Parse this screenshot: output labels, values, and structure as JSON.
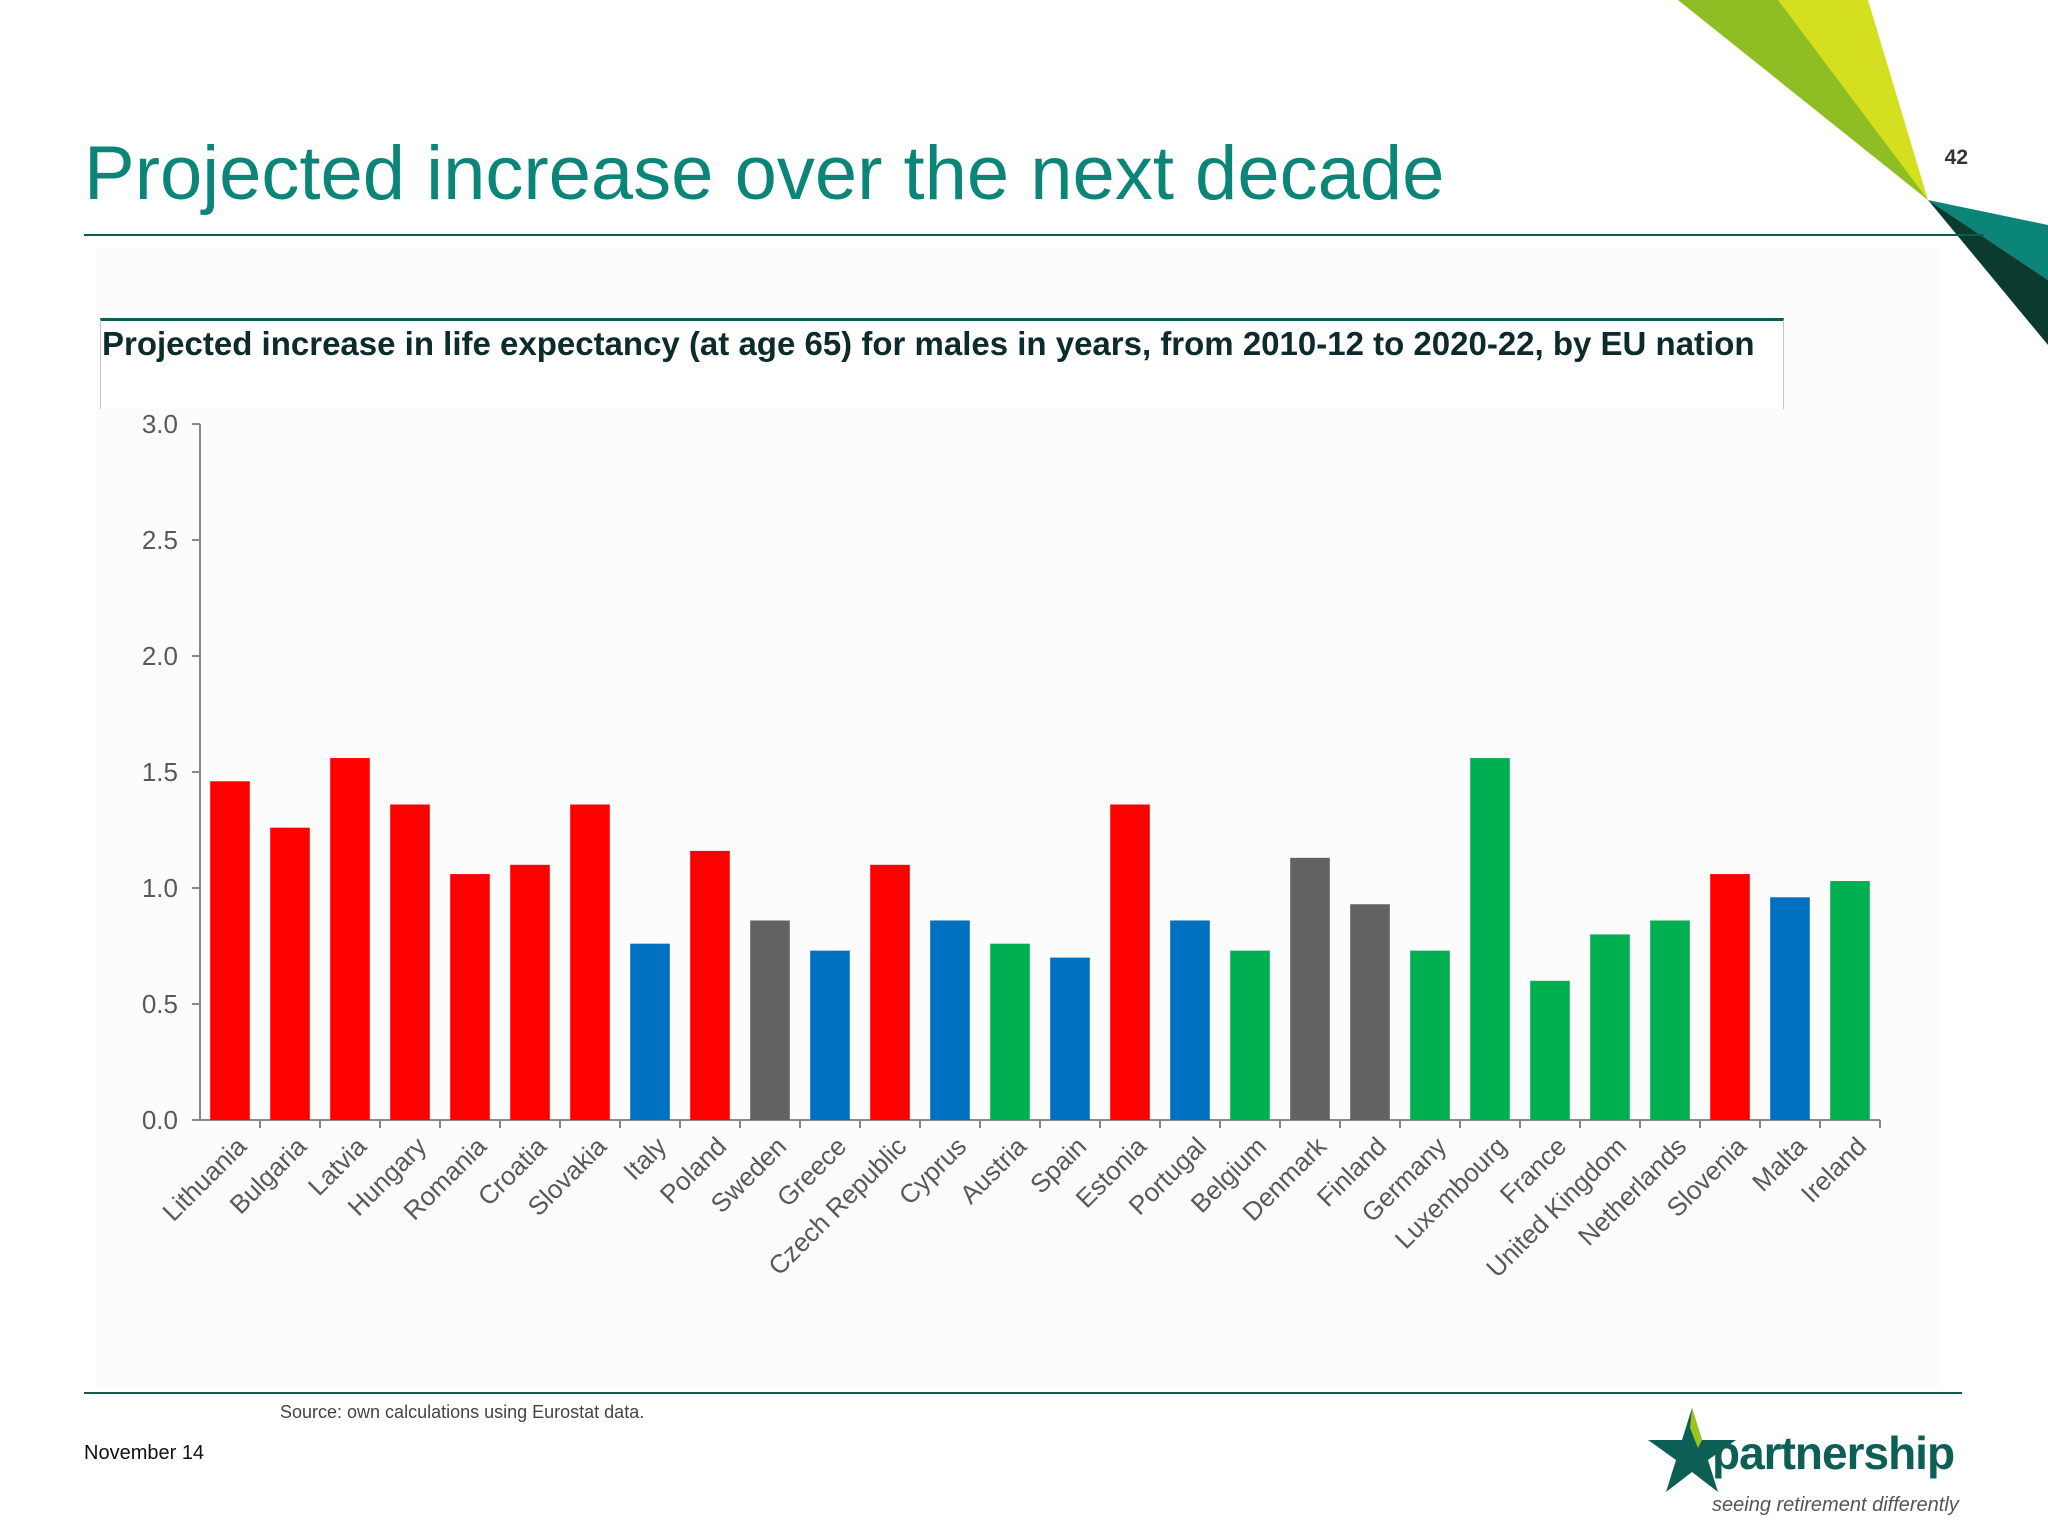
{
  "slide": {
    "title": "Projected increase over the next decade",
    "page_number": "42",
    "date": "November 14",
    "source": "Source: own calculations using Eurostat data."
  },
  "logo": {
    "name": "partnership",
    "tagline": "seeing retirement differently"
  },
  "colors": {
    "title": "#0a8578",
    "red": "#ff0000",
    "blue": "#0070c0",
    "green": "#00b050",
    "grey": "#636163"
  },
  "chart_data": {
    "type": "bar",
    "title": "Projected increase in life expectancy (at age 65) for males in years, from 2010-12 to 2020-22, by EU nation",
    "xlabel": "",
    "ylabel": "",
    "ylim": [
      0,
      3.0
    ],
    "yticks": [
      "0.0",
      "0.5",
      "1.0",
      "1.5",
      "2.0",
      "2.5",
      "3.0"
    ],
    "grid": false,
    "legend": "none",
    "categories": [
      "Lithuania",
      "Bulgaria",
      "Latvia",
      "Hungary",
      "Romania",
      "Croatia",
      "Slovakia",
      "Italy",
      "Poland",
      "Sweden",
      "Greece",
      "Czech Republic",
      "Cyprus",
      "Austria",
      "Spain",
      "Estonia",
      "Portugal",
      "Belgium",
      "Denmark",
      "Finland",
      "Germany",
      "Luxembourg",
      "France",
      "United Kingdom",
      "Netherlands",
      "Slovenia",
      "Malta",
      "Ireland"
    ],
    "values": [
      1.46,
      1.26,
      1.56,
      1.36,
      1.06,
      1.1,
      1.36,
      0.76,
      1.16,
      0.86,
      0.73,
      1.1,
      0.86,
      0.76,
      0.7,
      1.36,
      0.86,
      0.73,
      1.13,
      0.93,
      0.73,
      1.56,
      0.6,
      0.8,
      0.86,
      1.06,
      0.96,
      1.03
    ],
    "bar_colors": [
      "red",
      "red",
      "red",
      "red",
      "red",
      "red",
      "red",
      "blue",
      "red",
      "grey",
      "blue",
      "red",
      "blue",
      "green",
      "blue",
      "red",
      "blue",
      "green",
      "grey",
      "grey",
      "green",
      "green",
      "green",
      "green",
      "green",
      "red",
      "blue",
      "green"
    ]
  }
}
